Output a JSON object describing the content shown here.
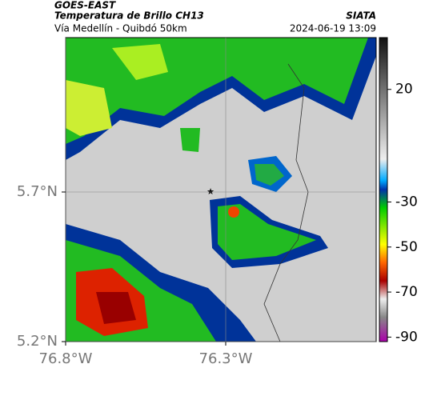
{
  "header": {
    "source": "GOES-EAST",
    "product": "Temperatura de Brillo CH13",
    "region": "Vía Medellín - Quibdó 50km",
    "agency": "SIATA",
    "timestamp": "2024-06-19 13:09"
  },
  "map": {
    "xlim": [
      -76.8,
      -75.83
    ],
    "ylim": [
      5.2,
      6.216
    ],
    "xticks": [
      {
        "value": -76.8,
        "label": "76.8°W"
      },
      {
        "value": -76.3,
        "label": "76.3°W"
      }
    ],
    "yticks": [
      {
        "value": 5.7,
        "label": "5.7°N"
      },
      {
        "value": 5.2,
        "label": "5.2°N"
      }
    ],
    "grid": true
  },
  "colorbar": {
    "lim": [
      -92,
      43
    ],
    "ticks": [
      20,
      -30,
      -50,
      -70,
      -90
    ]
  }
}
